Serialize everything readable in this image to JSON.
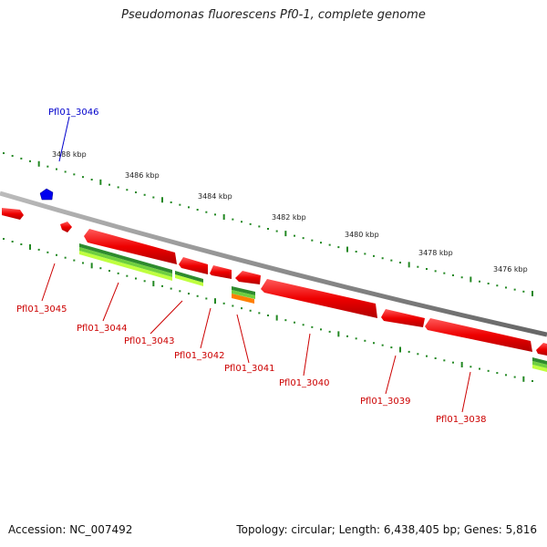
{
  "title": "Pseudomonas fluorescens Pf0-1, complete genome",
  "footer": {
    "accession": "Accession: NC_007492",
    "summary": "Topology: circular; Length: 6,438,405 bp; Genes: 5,816"
  },
  "ticks": [
    "3488 kbp",
    "3486 kbp",
    "3484 kbp",
    "3482 kbp",
    "3480 kbp",
    "3478 kbp",
    "3476 kbp"
  ],
  "genes": [
    {
      "id": "Pfl01_3046",
      "color": "#0000cc"
    },
    {
      "id": "Pfl01_3045",
      "color": "#cc0000"
    },
    {
      "id": "Pfl01_3044",
      "color": "#cc0000"
    },
    {
      "id": "Pfl01_3043",
      "color": "#cc0000"
    },
    {
      "id": "Pfl01_3042",
      "color": "#cc0000"
    },
    {
      "id": "Pfl01_3041",
      "color": "#cc0000"
    },
    {
      "id": "Pfl01_3040",
      "color": "#cc0000"
    },
    {
      "id": "Pfl01_3039",
      "color": "#cc0000"
    },
    {
      "id": "Pfl01_3038",
      "color": "#cc0000"
    }
  ],
  "colors": {
    "backbone": "#888888",
    "gene_forward": "#ee0000",
    "gene_blue": "#0000ee",
    "tick_green": "#228822",
    "feature_dark_green": "#2e8b2e",
    "feature_light_green": "#bfff3f",
    "feature_orange": "#ff7f00"
  }
}
